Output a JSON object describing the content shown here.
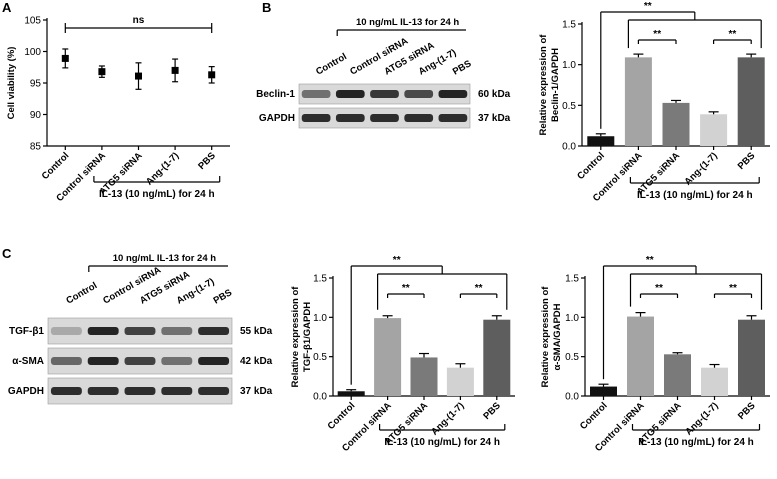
{
  "panel_letters": {
    "a": "A",
    "b": "B",
    "c": "C"
  },
  "labels": {
    "treatment_group": "IL-13 (10 ng/mL) for 24 h",
    "blot_header": "10 ng/mL IL-13 for 24 h",
    "sig_ns": "ns",
    "sig_double": "**"
  },
  "blot_b": {
    "lanes": [
      "Control",
      "Control siRNA",
      "ATG5 siRNA",
      "Ang-(1-7)",
      "PBS"
    ],
    "rows": [
      {
        "protein": "Beclin-1",
        "kda": "60 kDa"
      },
      {
        "protein": "GAPDH",
        "kda": "37 kDa"
      }
    ]
  },
  "blot_c": {
    "lanes": [
      "Control",
      "Control siRNA",
      "ATG5 siRNA",
      "Ang-(1-7)",
      "PBS"
    ],
    "rows": [
      {
        "protein": "TGF-β1",
        "kda": "55 kDa"
      },
      {
        "protein": "α-SMA",
        "kda": "42 kDa"
      },
      {
        "protein": "GAPDH",
        "kda": "37 kDa"
      }
    ]
  },
  "chart_data": [
    {
      "id": "A",
      "type": "scatter",
      "categories": [
        "Control",
        "Control siRNA",
        "ATG5 siRNA",
        "Ang-(1-7)",
        "PBS"
      ],
      "values": [
        98.9,
        96.8,
        96.1,
        97.0,
        96.3
      ],
      "errors": [
        1.5,
        0.9,
        2.1,
        1.8,
        1.3
      ],
      "ylabel": "Cell viability (%)",
      "ylim": [
        85,
        105
      ],
      "yticks": [
        85,
        90,
        95,
        100,
        105
      ],
      "annotation": "ns",
      "xgroup_label": "IL-13 (10 ng/mL) for 24 h"
    },
    {
      "id": "B",
      "type": "bar",
      "categories": [
        "Control",
        "Control siRNA",
        "ATG5 siRNA",
        "Ang-(1-7)",
        "PBS"
      ],
      "values": [
        0.12,
        1.09,
        0.53,
        0.39,
        1.09
      ],
      "errors": [
        0.03,
        0.04,
        0.03,
        0.03,
        0.04
      ],
      "colors": [
        "#111111",
        "#a4a4a4",
        "#7a7a7a",
        "#d2d2d2",
        "#5e5e5e"
      ],
      "ylabel": "Relative expression of Beclin-1/GAPDH",
      "ylabel_lines": [
        "Relative expression of",
        "Beclin-1/GAPDH"
      ],
      "ylim": [
        0,
        1.5
      ],
      "yticks": [
        "0.0",
        "0.5",
        "1.0",
        "1.5"
      ],
      "annotation": "**",
      "xgroup_label": "IL-13 (10 ng/mL) for 24 h"
    },
    {
      "id": "C1",
      "type": "bar",
      "categories": [
        "Control",
        "Control siRNA",
        "ATG5 siRNA",
        "Ang-(1-7)",
        "PBS"
      ],
      "values": [
        0.06,
        0.99,
        0.49,
        0.36,
        0.97
      ],
      "errors": [
        0.02,
        0.03,
        0.05,
        0.05,
        0.05
      ],
      "colors": [
        "#111111",
        "#a4a4a4",
        "#7a7a7a",
        "#d2d2d2",
        "#5e5e5e"
      ],
      "ylabel": "Relative expression of TGF-β1/GAPDH",
      "ylabel_lines": [
        "Relative expression of",
        "TGF-β1/GAPDH"
      ],
      "ylim": [
        0,
        1.5
      ],
      "yticks": [
        "0.0",
        "0.5",
        "1.0",
        "1.5"
      ],
      "annotation": "**",
      "xgroup_label": "IL-13 (10 ng/mL) for 24 h"
    },
    {
      "id": "C2",
      "type": "bar",
      "categories": [
        "Control",
        "Control siRNA",
        "ATG5 siRNA",
        "Ang-(1-7)",
        "PBS"
      ],
      "values": [
        0.12,
        1.01,
        0.53,
        0.36,
        0.97
      ],
      "errors": [
        0.03,
        0.05,
        0.02,
        0.04,
        0.05
      ],
      "colors": [
        "#111111",
        "#a4a4a4",
        "#7a7a7a",
        "#d2d2d2",
        "#5e5e5e"
      ],
      "ylabel": "Relative expression of α-SMA/GAPDH",
      "ylabel_lines": [
        "Relative expression of",
        "α-SMA/GAPDH"
      ],
      "ylim": [
        0,
        1.5
      ],
      "yticks": [
        "0.0",
        "0.5",
        "1.0",
        "1.5"
      ],
      "annotation": "**",
      "xgroup_label": "IL-13 (10 ng/mL) for 24 h"
    }
  ]
}
